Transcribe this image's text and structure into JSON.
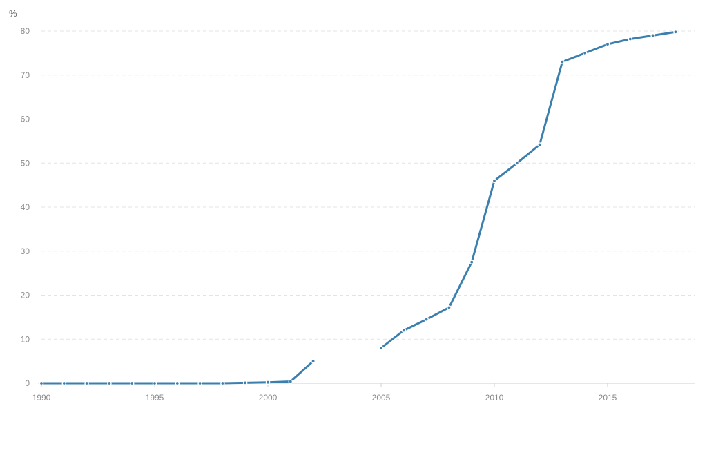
{
  "chart_data": {
    "type": "line",
    "unit": "%",
    "xlim": [
      1990,
      2019
    ],
    "ylim": [
      0,
      80
    ],
    "x_ticks": [
      1990,
      1995,
      2000,
      2005,
      2010,
      2015
    ],
    "y_ticks": [
      0,
      10,
      20,
      30,
      40,
      50,
      60,
      70,
      80
    ],
    "grid": "horizontal dashed",
    "color": "#3b7fae",
    "series": [
      {
        "points": [
          [
            1990,
            0
          ],
          [
            1991,
            0
          ],
          [
            1992,
            0
          ],
          [
            1993,
            0
          ],
          [
            1994,
            0
          ],
          [
            1995,
            0
          ],
          [
            1996,
            0
          ],
          [
            1997,
            0
          ],
          [
            1998,
            0
          ],
          [
            1999,
            0.1
          ],
          [
            2000,
            0.2
          ],
          [
            2001,
            0.4
          ],
          [
            2002,
            5
          ],
          [
            2003,
            null
          ],
          [
            2004,
            null
          ],
          [
            2005,
            8
          ],
          [
            2006,
            12
          ],
          [
            2007,
            14.5
          ],
          [
            2008,
            17.2
          ],
          [
            2009,
            27.5
          ],
          [
            2010,
            46
          ],
          [
            2011,
            50
          ],
          [
            2012,
            54.2
          ],
          [
            2013,
            73
          ],
          [
            2014,
            75
          ],
          [
            2015,
            77
          ],
          [
            2016,
            78.2
          ],
          [
            2017,
            79
          ],
          [
            2018,
            79.8
          ]
        ]
      }
    ]
  }
}
